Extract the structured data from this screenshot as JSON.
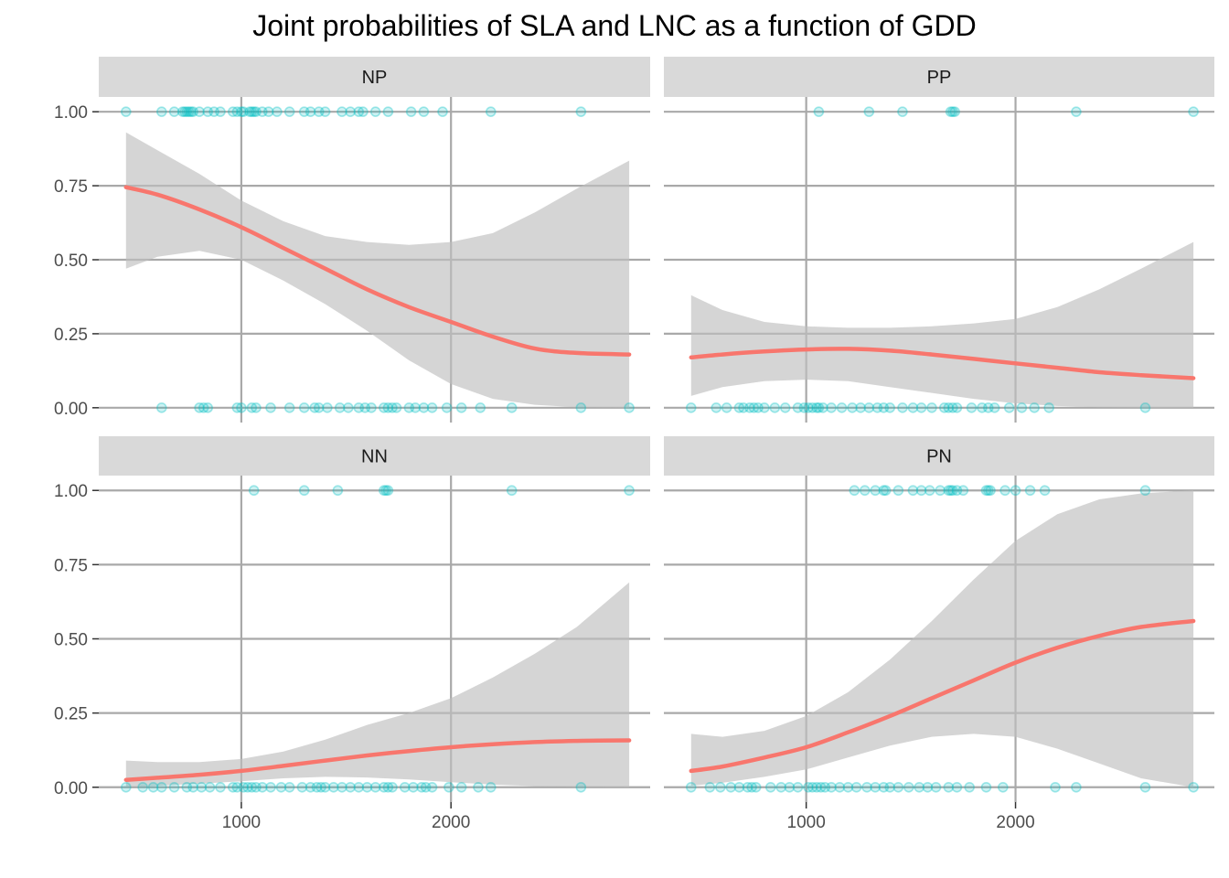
{
  "chart_data": {
    "type": "line",
    "title": "Joint probabilities of SLA and LNC as a function of GDD",
    "xlabel": "",
    "ylabel": "",
    "xlim": [
      320,
      2950
    ],
    "ylim": [
      -0.05,
      1.05
    ],
    "x_ticks": [
      1000,
      2000
    ],
    "y_ticks": [
      0,
      0.25,
      0.5,
      0.75,
      1
    ],
    "y_tick_labels": [
      "0.00",
      "0.25",
      "0.50",
      "0.75",
      "1.00"
    ],
    "grid": true,
    "colors": {
      "fit": "#F8766D",
      "points": "#00BFC4",
      "ribbon": "#BEBEBE",
      "strip": "#D9D9D9",
      "grid": "#A9A9A9"
    },
    "panels": [
      {
        "label": "NP",
        "fit": {
          "x": [
            450,
            600,
            800,
            1000,
            1200,
            1400,
            1600,
            1800,
            2000,
            2200,
            2400,
            2600,
            2850
          ],
          "y": [
            0.745,
            0.72,
            0.67,
            0.61,
            0.54,
            0.47,
            0.4,
            0.34,
            0.29,
            0.24,
            0.2,
            0.185,
            0.18
          ],
          "lower": [
            0.47,
            0.51,
            0.53,
            0.5,
            0.43,
            0.35,
            0.26,
            0.16,
            0.08,
            0.03,
            0.01,
            0.002,
            0.0
          ],
          "upper": [
            0.93,
            0.87,
            0.79,
            0.7,
            0.63,
            0.58,
            0.56,
            0.55,
            0.56,
            0.59,
            0.66,
            0.74,
            0.835
          ]
        },
        "points_y1": [
          450,
          620,
          680,
          720,
          730,
          740,
          750,
          760,
          770,
          800,
          840,
          870,
          900,
          960,
          980,
          1000,
          1010,
          1040,
          1050,
          1060,
          1070,
          1100,
          1130,
          1170,
          1230,
          1300,
          1330,
          1370,
          1400,
          1480,
          1520,
          1560,
          1580,
          1640,
          1700,
          1810,
          1870,
          1960,
          2190,
          2620
        ],
        "points_y0": [
          620,
          800,
          820,
          840,
          980,
          1000,
          1050,
          1070,
          1140,
          1230,
          1300,
          1350,
          1370,
          1410,
          1470,
          1510,
          1560,
          1590,
          1620,
          1680,
          1700,
          1720,
          1740,
          1800,
          1830,
          1870,
          1910,
          1980,
          2050,
          2140,
          2290,
          2620,
          2850
        ]
      },
      {
        "label": "PP",
        "fit": {
          "x": [
            450,
            600,
            800,
            1000,
            1200,
            1400,
            1600,
            1800,
            2000,
            2200,
            2400,
            2600,
            2850
          ],
          "y": [
            0.17,
            0.18,
            0.19,
            0.197,
            0.199,
            0.193,
            0.18,
            0.165,
            0.15,
            0.135,
            0.12,
            0.11,
            0.1
          ],
          "lower": [
            0.04,
            0.07,
            0.09,
            0.095,
            0.09,
            0.07,
            0.05,
            0.03,
            0.015,
            0.006,
            0.002,
            0.0,
            0.0
          ],
          "upper": [
            0.38,
            0.33,
            0.29,
            0.275,
            0.27,
            0.27,
            0.275,
            0.285,
            0.3,
            0.34,
            0.4,
            0.47,
            0.56
          ]
        },
        "points_y1": [
          1060,
          1300,
          1460,
          1690,
          1700,
          1710,
          2290,
          2850
        ],
        "points_y0": [
          450,
          570,
          620,
          680,
          700,
          730,
          750,
          770,
          800,
          850,
          900,
          960,
          990,
          1010,
          1030,
          1050,
          1060,
          1080,
          1120,
          1170,
          1220,
          1260,
          1300,
          1340,
          1370,
          1400,
          1460,
          1510,
          1550,
          1600,
          1660,
          1680,
          1700,
          1720,
          1790,
          1840,
          1870,
          1900,
          1970,
          2030,
          2090,
          2160,
          2620
        ]
      },
      {
        "label": "NN",
        "fit": {
          "x": [
            450,
            600,
            800,
            1000,
            1200,
            1400,
            1600,
            1800,
            2000,
            2200,
            2400,
            2600,
            2850
          ],
          "y": [
            0.025,
            0.032,
            0.042,
            0.055,
            0.072,
            0.09,
            0.107,
            0.122,
            0.135,
            0.145,
            0.152,
            0.156,
            0.158
          ],
          "lower": [
            0.002,
            0.005,
            0.012,
            0.02,
            0.03,
            0.035,
            0.033,
            0.026,
            0.017,
            0.009,
            0.004,
            0.001,
            0.0
          ],
          "upper": [
            0.09,
            0.085,
            0.085,
            0.095,
            0.12,
            0.16,
            0.21,
            0.25,
            0.3,
            0.37,
            0.45,
            0.54,
            0.69
          ]
        },
        "points_y1": [
          1060,
          1300,
          1460,
          1680,
          1690,
          1700,
          2290,
          2850
        ],
        "points_y0": [
          450,
          530,
          580,
          620,
          680,
          740,
          770,
          810,
          850,
          900,
          960,
          980,
          1010,
          1030,
          1050,
          1070,
          1100,
          1140,
          1190,
          1230,
          1290,
          1330,
          1360,
          1380,
          1400,
          1440,
          1480,
          1520,
          1560,
          1600,
          1640,
          1680,
          1700,
          1720,
          1780,
          1820,
          1860,
          1880,
          1910,
          1990,
          2050,
          2130,
          2190,
          2620
        ]
      },
      {
        "label": "PN",
        "fit": {
          "x": [
            450,
            600,
            800,
            1000,
            1200,
            1400,
            1600,
            1800,
            2000,
            2200,
            2400,
            2600,
            2850
          ],
          "y": [
            0.055,
            0.07,
            0.1,
            0.135,
            0.185,
            0.24,
            0.3,
            0.36,
            0.42,
            0.47,
            0.51,
            0.54,
            0.56
          ],
          "lower": [
            0.005,
            0.015,
            0.035,
            0.06,
            0.1,
            0.14,
            0.17,
            0.18,
            0.17,
            0.13,
            0.08,
            0.03,
            0.0
          ],
          "upper": [
            0.18,
            0.17,
            0.19,
            0.24,
            0.32,
            0.43,
            0.56,
            0.7,
            0.83,
            0.92,
            0.97,
            0.99,
            1.0
          ]
        },
        "points_y1": [
          1230,
          1280,
          1330,
          1370,
          1380,
          1440,
          1510,
          1550,
          1590,
          1640,
          1680,
          1690,
          1700,
          1720,
          1750,
          1860,
          1870,
          1880,
          1950,
          2000,
          2070,
          2140,
          2620
        ],
        "points_y0": [
          450,
          540,
          590,
          640,
          680,
          720,
          740,
          760,
          830,
          880,
          920,
          960,
          1010,
          1030,
          1050,
          1070,
          1090,
          1120,
          1160,
          1200,
          1240,
          1290,
          1330,
          1370,
          1400,
          1440,
          1490,
          1540,
          1580,
          1620,
          1680,
          1720,
          1780,
          1860,
          1940,
          2190,
          2290,
          2620,
          2850
        ]
      }
    ]
  }
}
